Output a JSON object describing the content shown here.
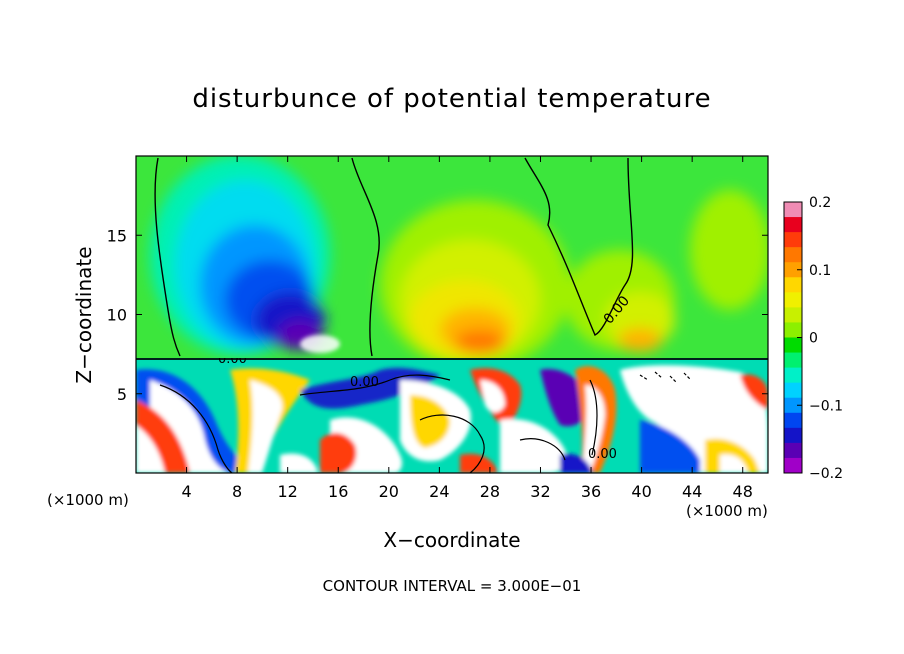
{
  "chart_data": {
    "type": "heatmap",
    "title": "disturbunce of potential temperature",
    "xlabel": "X−coordinate",
    "ylabel": "Z−coordinate",
    "x_unit": "(×1000 m)",
    "x_ticks": [
      4,
      8,
      12,
      16,
      20,
      24,
      28,
      32,
      36,
      40,
      44,
      48
    ],
    "y_ticks": [
      5,
      10,
      15
    ],
    "xlim": [
      0,
      50
    ],
    "ylim": [
      0,
      20
    ],
    "colorbar": {
      "min": -0.2,
      "max": 0.2,
      "ticks": [
        0.2,
        0.1,
        0,
        -0.1,
        -0.2
      ],
      "tick_labels": [
        "0.2",
        "0.1",
        "0",
        "−0.1",
        "−0.2"
      ],
      "colors": [
        "#f08cb4",
        "#e8001e",
        "#ff3c0a",
        "#ff7800",
        "#ffa000",
        "#ffd700",
        "#f0f000",
        "#c8f000",
        "#8cf000",
        "#00dc00",
        "#00f070",
        "#00f0c8",
        "#00d2ff",
        "#0096ff",
        "#0046f0",
        "#1414c8",
        "#5a00b4",
        "#a000c8"
      ]
    },
    "contour_labels": [
      "0.00",
      "0.00",
      "0.00",
      "0.00"
    ],
    "contour_interval_text": "CONTOUR INTERVAL = 3.000E−01"
  }
}
